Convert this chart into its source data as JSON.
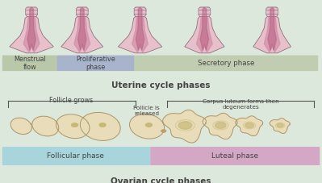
{
  "bg_color": "#dde8dc",
  "title_ovarian": "Ovarian cycle phases",
  "title_uterine": "Uterine cycle phases",
  "follicular_color": "#a8d4dc",
  "luteal_color": "#d4a8c4",
  "menstrual_color": "#b8c8a8",
  "proliferative_color": "#a8b4cc",
  "secretory_color": "#c0cdb0",
  "label_follicle_grows": "Follicle grows",
  "label_follicle_released": "Follicle is\nreleased",
  "label_corpus": "Corpus luteum forms then\ndegenerates",
  "label_follicular": "Follicular phase",
  "label_luteal": "Luteal phase",
  "label_menstrual": "Menstrual\nflow",
  "label_proliferative": "Proliferative\nphase",
  "label_secretory": "Secretory phase",
  "ovary_color": "#e8ddb8",
  "ovary_edge": "#a89870",
  "ovary_inner": "#c8b878",
  "uterus_outer": "#e8c0cc",
  "uterus_inner": "#b86080",
  "uterus_mid": "#d090a8",
  "uterus_edge": "#907080",
  "text_color": "#444444"
}
